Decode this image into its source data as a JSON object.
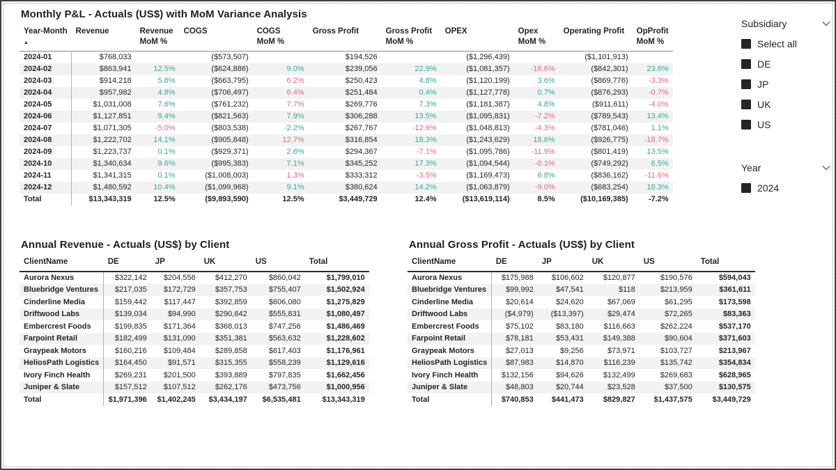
{
  "colors": {
    "positive": "#37A794",
    "negative": "#DD6B7F",
    "checkbox": "#252423",
    "separator": "#9FB3D1"
  },
  "monthly": {
    "title": "Monthly P&L - Actuals (US$) with MoM Variance Analysis",
    "sort_indicator": "▲",
    "columns": [
      {
        "l1": "Year-Month",
        "l2": "",
        "sorted": true
      },
      {
        "l1": "Revenue",
        "l2": ""
      },
      {
        "l1": "Revenue",
        "l2": "MoM %"
      },
      {
        "l1": "COGS",
        "l2": ""
      },
      {
        "l1": "COGS",
        "l2": "MoM %"
      },
      {
        "l1": "Gross Profit",
        "l2": ""
      },
      {
        "l1": "Gross Profit",
        "l2": "MoM %"
      },
      {
        "l1": "OPEX",
        "l2": ""
      },
      {
        "l1": "Opex",
        "l2": "MoM %"
      },
      {
        "l1": "Operating Profit",
        "l2": ""
      },
      {
        "l1": "OpProfit",
        "l2": "MoM %"
      }
    ],
    "rows": [
      {
        "cells": [
          {
            "t": "2024-01"
          },
          {
            "t": "$768,033"
          },
          {
            "t": ""
          },
          {
            "t": "($573,507)"
          },
          {
            "t": ""
          },
          {
            "t": "$194,526"
          },
          {
            "t": ""
          },
          {
            "t": "($1,296,439)"
          },
          {
            "t": ""
          },
          {
            "t": "($1,101,913)"
          },
          {
            "t": ""
          }
        ]
      },
      {
        "cells": [
          {
            "t": "2024-02"
          },
          {
            "t": "$863,941"
          },
          {
            "t": "12.5%",
            "c": "g"
          },
          {
            "t": "($624,886)"
          },
          {
            "t": "9.0%",
            "c": "g"
          },
          {
            "t": "$239,056"
          },
          {
            "t": "22.9%",
            "c": "g"
          },
          {
            "t": "($1,081,357)"
          },
          {
            "t": "-16.6%",
            "c": "r"
          },
          {
            "t": "($842,301)"
          },
          {
            "t": "23.6%",
            "c": "g"
          }
        ]
      },
      {
        "cells": [
          {
            "t": "2024-03"
          },
          {
            "t": "$914,218"
          },
          {
            "t": "5.8%",
            "c": "g"
          },
          {
            "t": "($663,795)"
          },
          {
            "t": "6.2%",
            "c": "r"
          },
          {
            "t": "$250,423"
          },
          {
            "t": "4.8%",
            "c": "g"
          },
          {
            "t": "($1,120,199)"
          },
          {
            "t": "3.6%",
            "c": "g"
          },
          {
            "t": "($869,776)"
          },
          {
            "t": "-3.3%",
            "c": "r"
          }
        ]
      },
      {
        "cells": [
          {
            "t": "2024-04"
          },
          {
            "t": "$957,982"
          },
          {
            "t": "4.8%",
            "c": "g"
          },
          {
            "t": "($706,497)"
          },
          {
            "t": "6.4%",
            "c": "r"
          },
          {
            "t": "$251,484"
          },
          {
            "t": "0.4%",
            "c": "g"
          },
          {
            "t": "($1,127,778)"
          },
          {
            "t": "0.7%",
            "c": "g"
          },
          {
            "t": "($876,293)"
          },
          {
            "t": "-0.7%",
            "c": "r"
          }
        ]
      },
      {
        "cells": [
          {
            "t": "2024-05"
          },
          {
            "t": "$1,031,008"
          },
          {
            "t": "7.6%",
            "c": "g"
          },
          {
            "t": "($761,232)"
          },
          {
            "t": "7.7%",
            "c": "r"
          },
          {
            "t": "$269,776"
          },
          {
            "t": "7.3%",
            "c": "g"
          },
          {
            "t": "($1,181,387)"
          },
          {
            "t": "4.8%",
            "c": "g"
          },
          {
            "t": "($911,611)"
          },
          {
            "t": "-4.0%",
            "c": "r"
          }
        ]
      },
      {
        "cells": [
          {
            "t": "2024-06"
          },
          {
            "t": "$1,127,851"
          },
          {
            "t": "9.4%",
            "c": "g"
          },
          {
            "t": "($821,563)"
          },
          {
            "t": "7.9%",
            "c": "g"
          },
          {
            "t": "$306,288"
          },
          {
            "t": "13.5%",
            "c": "g"
          },
          {
            "t": "($1,095,831)"
          },
          {
            "t": "-7.2%",
            "c": "r"
          },
          {
            "t": "($789,543)"
          },
          {
            "t": "13.4%",
            "c": "g"
          }
        ]
      },
      {
        "cells": [
          {
            "t": "2024-07"
          },
          {
            "t": "$1,071,305"
          },
          {
            "t": "-5.0%",
            "c": "r"
          },
          {
            "t": "($803,538)"
          },
          {
            "t": "-2.2%",
            "c": "g"
          },
          {
            "t": "$267,767"
          },
          {
            "t": "-12.6%",
            "c": "r"
          },
          {
            "t": "($1,048,813)"
          },
          {
            "t": "-4.3%",
            "c": "r"
          },
          {
            "t": "($781,046)"
          },
          {
            "t": "1.1%",
            "c": "g"
          }
        ]
      },
      {
        "cells": [
          {
            "t": "2024-08"
          },
          {
            "t": "$1,222,702"
          },
          {
            "t": "14.1%",
            "c": "g"
          },
          {
            "t": "($905,848)"
          },
          {
            "t": "12.7%",
            "c": "r"
          },
          {
            "t": "$316,854"
          },
          {
            "t": "18.3%",
            "c": "g"
          },
          {
            "t": "($1,243,629)"
          },
          {
            "t": "18.6%",
            "c": "g"
          },
          {
            "t": "($926,775)"
          },
          {
            "t": "-18.7%",
            "c": "r"
          }
        ]
      },
      {
        "cells": [
          {
            "t": "2024-09"
          },
          {
            "t": "$1,223,737"
          },
          {
            "t": "0.1%",
            "c": "g"
          },
          {
            "t": "($929,371)"
          },
          {
            "t": "2.6%",
            "c": "g"
          },
          {
            "t": "$294,367"
          },
          {
            "t": "-7.1%",
            "c": "r"
          },
          {
            "t": "($1,095,786)"
          },
          {
            "t": "-11.9%",
            "c": "r"
          },
          {
            "t": "($801,419)"
          },
          {
            "t": "13.5%",
            "c": "g"
          }
        ]
      },
      {
        "cells": [
          {
            "t": "2024-10"
          },
          {
            "t": "$1,340,634"
          },
          {
            "t": "9.6%",
            "c": "g"
          },
          {
            "t": "($995,383)"
          },
          {
            "t": "7.1%",
            "c": "g"
          },
          {
            "t": "$345,252"
          },
          {
            "t": "17.3%",
            "c": "g"
          },
          {
            "t": "($1,094,544)"
          },
          {
            "t": "-0.1%",
            "c": "r"
          },
          {
            "t": "($749,292)"
          },
          {
            "t": "6.5%",
            "c": "g"
          }
        ]
      },
      {
        "cells": [
          {
            "t": "2024-11"
          },
          {
            "t": "$1,341,315"
          },
          {
            "t": "0.1%",
            "c": "g"
          },
          {
            "t": "($1,008,003)"
          },
          {
            "t": "1.3%",
            "c": "r"
          },
          {
            "t": "$333,312"
          },
          {
            "t": "-3.5%",
            "c": "r"
          },
          {
            "t": "($1,169,473)"
          },
          {
            "t": "6.8%",
            "c": "g"
          },
          {
            "t": "($836,162)"
          },
          {
            "t": "-11.6%",
            "c": "r"
          }
        ]
      },
      {
        "cells": [
          {
            "t": "2024-12"
          },
          {
            "t": "$1,480,592"
          },
          {
            "t": "10.4%",
            "c": "g"
          },
          {
            "t": "($1,099,968)"
          },
          {
            "t": "9.1%",
            "c": "g"
          },
          {
            "t": "$380,624"
          },
          {
            "t": "14.2%",
            "c": "g"
          },
          {
            "t": "($1,063,879)"
          },
          {
            "t": "-9.0%",
            "c": "r"
          },
          {
            "t": "($683,254)"
          },
          {
            "t": "18.3%",
            "c": "g"
          }
        ]
      }
    ],
    "total": {
      "cells": [
        {
          "t": "Total"
        },
        {
          "t": "$13,343,319"
        },
        {
          "t": "12.5%"
        },
        {
          "t": "($9,893,590)"
        },
        {
          "t": "12.5%"
        },
        {
          "t": "$3,449,729"
        },
        {
          "t": "12.4%"
        },
        {
          "t": "($13,619,114)"
        },
        {
          "t": "8.5%"
        },
        {
          "t": "($10,169,385)"
        },
        {
          "t": "-7.2%"
        }
      ]
    }
  },
  "clients_revenue": {
    "title": "Annual Revenue - Actuals (US$) by Client",
    "columns": [
      {
        "l1": "ClientName",
        "l2": ""
      },
      {
        "l1": "DE",
        "l2": ""
      },
      {
        "l1": "JP",
        "l2": ""
      },
      {
        "l1": "UK",
        "l2": ""
      },
      {
        "l1": "US",
        "l2": ""
      },
      {
        "l1": "Total",
        "l2": ""
      }
    ],
    "rows": [
      {
        "cells": [
          {
            "t": "Aurora Nexus"
          },
          {
            "t": "$322,142"
          },
          {
            "t": "$204,556"
          },
          {
            "t": "$412,270"
          },
          {
            "t": "$860,042"
          },
          {
            "t": "$1,799,010",
            "b": true
          }
        ]
      },
      {
        "cells": [
          {
            "t": "Bluebridge Ventures"
          },
          {
            "t": "$217,035"
          },
          {
            "t": "$172,729"
          },
          {
            "t": "$357,753"
          },
          {
            "t": "$755,407"
          },
          {
            "t": "$1,502,924",
            "b": true
          }
        ]
      },
      {
        "cells": [
          {
            "t": "Cinderline Media"
          },
          {
            "t": "$159,442"
          },
          {
            "t": "$117,447"
          },
          {
            "t": "$392,859"
          },
          {
            "t": "$606,080"
          },
          {
            "t": "$1,275,829",
            "b": true
          }
        ]
      },
      {
        "cells": [
          {
            "t": "Driftwood Labs"
          },
          {
            "t": "$139,034"
          },
          {
            "t": "$94,990"
          },
          {
            "t": "$290,642"
          },
          {
            "t": "$555,831"
          },
          {
            "t": "$1,080,497",
            "b": true
          }
        ]
      },
      {
        "cells": [
          {
            "t": "Embercrest Foods"
          },
          {
            "t": "$199,835"
          },
          {
            "t": "$171,364"
          },
          {
            "t": "$368,013"
          },
          {
            "t": "$747,256"
          },
          {
            "t": "$1,486,469",
            "b": true
          }
        ]
      },
      {
        "cells": [
          {
            "t": "Farpoint Retail"
          },
          {
            "t": "$182,499"
          },
          {
            "t": "$131,090"
          },
          {
            "t": "$351,381"
          },
          {
            "t": "$563,632"
          },
          {
            "t": "$1,228,602",
            "b": true
          }
        ]
      },
      {
        "cells": [
          {
            "t": "Graypeak Motors"
          },
          {
            "t": "$160,216"
          },
          {
            "t": "$109,484"
          },
          {
            "t": "$289,858"
          },
          {
            "t": "$617,403"
          },
          {
            "t": "$1,176,961",
            "b": true
          }
        ]
      },
      {
        "cells": [
          {
            "t": "HeliosPath Logistics"
          },
          {
            "t": "$164,450"
          },
          {
            "t": "$91,571"
          },
          {
            "t": "$315,355"
          },
          {
            "t": "$558,239"
          },
          {
            "t": "$1,129,616",
            "b": true
          }
        ]
      },
      {
        "cells": [
          {
            "t": "Ivory Finch Health"
          },
          {
            "t": "$269,231"
          },
          {
            "t": "$201,500"
          },
          {
            "t": "$393,889"
          },
          {
            "t": "$797,835"
          },
          {
            "t": "$1,662,456",
            "b": true
          }
        ]
      },
      {
        "cells": [
          {
            "t": "Juniper & Slate"
          },
          {
            "t": "$157,512"
          },
          {
            "t": "$107,512"
          },
          {
            "t": "$262,176"
          },
          {
            "t": "$473,756"
          },
          {
            "t": "$1,000,956",
            "b": true
          }
        ]
      }
    ],
    "total": {
      "cells": [
        {
          "t": "Total"
        },
        {
          "t": "$1,971,396"
        },
        {
          "t": "$1,402,245"
        },
        {
          "t": "$3,434,197"
        },
        {
          "t": "$6,535,481"
        },
        {
          "t": "$13,343,319"
        }
      ]
    }
  },
  "clients_gross_profit": {
    "title": "Annual Gross Profit - Actuals (US$) by Client",
    "columns": [
      {
        "l1": "ClientName",
        "l2": ""
      },
      {
        "l1": "DE",
        "l2": ""
      },
      {
        "l1": "JP",
        "l2": ""
      },
      {
        "l1": "UK",
        "l2": ""
      },
      {
        "l1": "US",
        "l2": ""
      },
      {
        "l1": "Total",
        "l2": ""
      }
    ],
    "rows": [
      {
        "cells": [
          {
            "t": "Aurora Nexus"
          },
          {
            "t": "$175,988"
          },
          {
            "t": "$106,602"
          },
          {
            "t": "$120,877"
          },
          {
            "t": "$190,576"
          },
          {
            "t": "$594,043",
            "b": true
          }
        ]
      },
      {
        "cells": [
          {
            "t": "Bluebridge Ventures"
          },
          {
            "t": "$99,992"
          },
          {
            "t": "$47,541"
          },
          {
            "t": "$118"
          },
          {
            "t": "$213,959"
          },
          {
            "t": "$361,611",
            "b": true
          }
        ]
      },
      {
        "cells": [
          {
            "t": "Cinderline Media"
          },
          {
            "t": "$20,614"
          },
          {
            "t": "$24,620"
          },
          {
            "t": "$67,069"
          },
          {
            "t": "$61,295"
          },
          {
            "t": "$173,598",
            "b": true
          }
        ]
      },
      {
        "cells": [
          {
            "t": "Driftwood Labs"
          },
          {
            "t": "($4,979)"
          },
          {
            "t": "($13,397)"
          },
          {
            "t": "$29,474"
          },
          {
            "t": "$72,265"
          },
          {
            "t": "$83,363",
            "b": true
          }
        ]
      },
      {
        "cells": [
          {
            "t": "Embercrest Foods"
          },
          {
            "t": "$75,102"
          },
          {
            "t": "$83,180"
          },
          {
            "t": "$116,663"
          },
          {
            "t": "$262,224"
          },
          {
            "t": "$537,170",
            "b": true
          }
        ]
      },
      {
        "cells": [
          {
            "t": "Farpoint Retail"
          },
          {
            "t": "$78,181"
          },
          {
            "t": "$53,431"
          },
          {
            "t": "$149,388"
          },
          {
            "t": "$90,604"
          },
          {
            "t": "$371,603",
            "b": true
          }
        ]
      },
      {
        "cells": [
          {
            "t": "Graypeak Motors"
          },
          {
            "t": "$27,013"
          },
          {
            "t": "$9,256"
          },
          {
            "t": "$73,971"
          },
          {
            "t": "$103,727"
          },
          {
            "t": "$213,967",
            "b": true
          }
        ]
      },
      {
        "cells": [
          {
            "t": "HeliosPath Logistics"
          },
          {
            "t": "$87,983"
          },
          {
            "t": "$14,870"
          },
          {
            "t": "$116,239"
          },
          {
            "t": "$135,742"
          },
          {
            "t": "$354,834",
            "b": true
          }
        ]
      },
      {
        "cells": [
          {
            "t": "Ivory Finch Health"
          },
          {
            "t": "$132,156"
          },
          {
            "t": "$94,626"
          },
          {
            "t": "$132,499"
          },
          {
            "t": "$269,683"
          },
          {
            "t": "$628,965",
            "b": true
          }
        ]
      },
      {
        "cells": [
          {
            "t": "Juniper & Slate"
          },
          {
            "t": "$48,803"
          },
          {
            "t": "$20,744"
          },
          {
            "t": "$23,528"
          },
          {
            "t": "$37,500"
          },
          {
            "t": "$130,575",
            "b": true
          }
        ]
      }
    ],
    "total": {
      "cells": [
        {
          "t": "Total"
        },
        {
          "t": "$740,853"
        },
        {
          "t": "$441,473"
        },
        {
          "t": "$829,827"
        },
        {
          "t": "$1,437,575"
        },
        {
          "t": "$3,449,729"
        }
      ]
    }
  },
  "slicers": {
    "subsidiary": {
      "title": "Subsidiary",
      "items": [
        "Select all",
        "DE",
        "JP",
        "UK",
        "US"
      ]
    },
    "year": {
      "title": "Year",
      "items": [
        "2024"
      ]
    }
  }
}
